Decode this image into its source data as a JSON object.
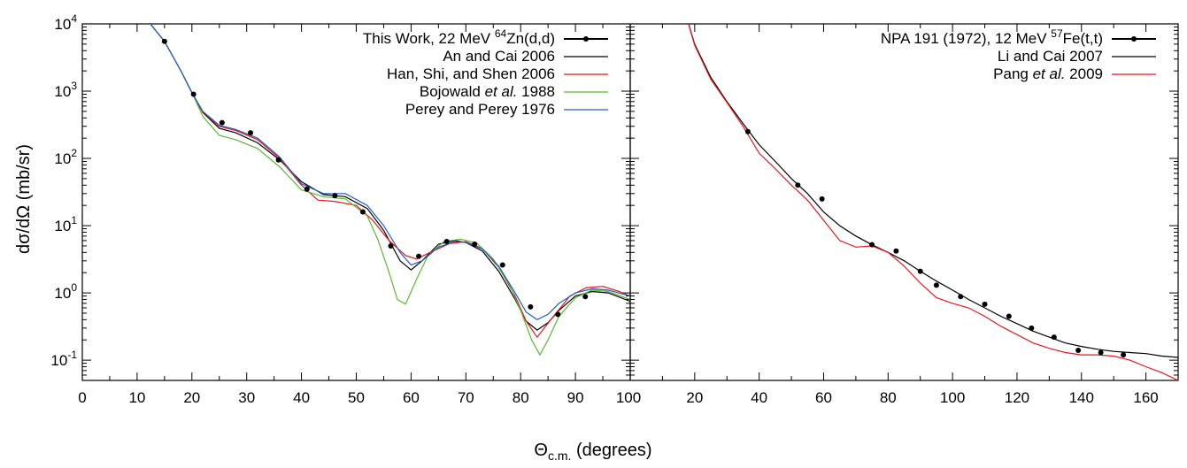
{
  "chart_data": [
    {
      "type": "scatter",
      "panel": "left",
      "xlabel": "Θc.m. (degrees)",
      "ylabel": "dσ/dΩ (mb/sr)",
      "xlim": [
        0,
        100
      ],
      "ylim": [
        0.05,
        10000
      ],
      "yscale": "log",
      "xticks": [
        0,
        10,
        20,
        30,
        40,
        50,
        60,
        70,
        80,
        90,
        100
      ],
      "yticks": [
        {
          "base": "10",
          "exp": "-1",
          "v": 0.1
        },
        {
          "base": "10",
          "exp": "0",
          "v": 1
        },
        {
          "base": "10",
          "exp": "1",
          "v": 10
        },
        {
          "base": "10",
          "exp": "2",
          "v": 100
        },
        {
          "base": "10",
          "exp": "3",
          "v": 1000
        },
        {
          "base": "10",
          "exp": "4",
          "v": 10000
        }
      ],
      "legend_position": "top-right",
      "series": [
        {
          "name": "This Work, 22 MeV 64Zn(d,d)",
          "legend": {
            "pre": "This Work, 22 MeV ",
            "sup": "64",
            "post": "Zn(d,d)"
          },
          "color": "#000000",
          "kind": "points",
          "x": [
            15,
            20.3,
            25.5,
            30.7,
            35.8,
            41,
            46.1,
            51.2,
            56.3,
            61.4,
            66.5,
            71.6,
            76.7,
            81.8,
            86.8,
            91.8
          ],
          "y": [
            5500,
            900,
            340,
            240,
            95,
            35,
            28,
            16,
            5,
            3.5,
            5.8,
            5.3,
            2.6,
            0.62,
            0.48,
            0.88
          ]
        },
        {
          "name": "An and Cai 2006",
          "legend": {
            "pre": "An and Cai 2006"
          },
          "color": "#000000",
          "kind": "line",
          "x": [
            12,
            15,
            18,
            20,
            22,
            25,
            28,
            32,
            36,
            40,
            44,
            48,
            52,
            55,
            58,
            60,
            62,
            65,
            68,
            70,
            73,
            76,
            79,
            81,
            83,
            85,
            87,
            90,
            93,
            96,
            100
          ],
          "y": [
            11000,
            5500,
            2000,
            950,
            480,
            280,
            240,
            170,
            95,
            45,
            29,
            27,
            18,
            8.5,
            3,
            2.2,
            3,
            5.3,
            6,
            5.6,
            4.2,
            2.1,
            0.8,
            0.38,
            0.28,
            0.36,
            0.55,
            0.9,
            1.05,
            1.0,
            0.75
          ]
        },
        {
          "name": "Han, Shi, and Shen 2006",
          "legend": {
            "pre": "Han, Shi, and Shen 2006"
          },
          "color": "#e8181c",
          "kind": "line",
          "x": [
            12,
            15,
            18,
            20,
            22,
            25,
            28,
            32,
            36,
            40,
            43,
            46,
            50,
            53,
            56,
            59,
            61,
            64,
            67,
            70,
            73,
            76,
            79,
            81,
            83,
            86,
            89,
            92,
            95,
            98,
            100
          ],
          "y": [
            11000,
            5500,
            2000,
            950,
            490,
            300,
            260,
            190,
            100,
            40,
            24,
            23,
            20,
            12,
            6,
            3.6,
            3.2,
            4.2,
            5.4,
            5.8,
            4.6,
            2.4,
            0.9,
            0.38,
            0.22,
            0.45,
            0.9,
            1.2,
            1.25,
            1.05,
            0.9
          ]
        },
        {
          "name": "Bojowald et al. 1988",
          "legend": {
            "pre": "Bojowald ",
            "ital": "et al.",
            "post": " 1988"
          },
          "color": "#5cb832",
          "kind": "line",
          "x": [
            12,
            15,
            18,
            20,
            22,
            25,
            28,
            32,
            36,
            40,
            44,
            48,
            52,
            54,
            56,
            57.5,
            59,
            61,
            63,
            66,
            69,
            72,
            75,
            78,
            80,
            82,
            83.5,
            85,
            87,
            90,
            93,
            96,
            100
          ],
          "y": [
            11000,
            5500,
            2000,
            950,
            420,
            220,
            190,
            140,
            75,
            34,
            27,
            25,
            14,
            6,
            2,
            0.8,
            0.68,
            1.6,
            3.5,
            5.8,
            6.3,
            5.5,
            3.2,
            1.3,
            0.55,
            0.2,
            0.12,
            0.2,
            0.45,
            0.85,
            1.1,
            1.05,
            0.8
          ]
        },
        {
          "name": "Perey and Perey 1976",
          "legend": {
            "pre": "Perey and Perey 1976"
          },
          "color": "#2060c0",
          "kind": "line",
          "x": [
            12,
            15,
            18,
            20,
            22,
            25,
            28,
            32,
            36,
            40,
            44,
            48,
            52,
            55,
            58,
            60,
            62,
            65,
            68,
            70,
            73,
            76,
            79,
            81,
            83,
            85,
            87,
            90,
            93,
            96,
            100
          ],
          "y": [
            11000,
            5500,
            2000,
            950,
            500,
            310,
            270,
            200,
            105,
            42,
            30,
            30,
            20,
            10,
            4,
            2.6,
            3,
            4.8,
            5.8,
            5.6,
            4.5,
            2.5,
            1.0,
            0.52,
            0.4,
            0.48,
            0.7,
            1.0,
            1.15,
            1.1,
            0.9
          ]
        }
      ]
    },
    {
      "type": "scatter",
      "panel": "right",
      "xlabel": "Θc.m. (degrees)",
      "ylabel": "",
      "xlim": [
        0,
        170
      ],
      "ylim": [
        0.05,
        10000
      ],
      "yscale": "log",
      "xticks": [
        0,
        20,
        40,
        60,
        80,
        100,
        120,
        140,
        160
      ],
      "legend_position": "top-right",
      "series": [
        {
          "name": "NPA 191 (1972), 12 MeV 57Fe(t,t)",
          "legend": {
            "pre": "NPA 191 (1972), 12 MeV ",
            "sup": "57",
            "post": "Fe(t,t)"
          },
          "color": "#000000",
          "kind": "points",
          "x": [
            36.5,
            52,
            59.5,
            75,
            82.5,
            90,
            95,
            102.5,
            110,
            117.5,
            124.5,
            131.5,
            139,
            146,
            153
          ],
          "y": [
            250,
            40,
            25,
            5.2,
            4.2,
            2.1,
            1.3,
            0.88,
            0.68,
            0.45,
            0.3,
            0.22,
            0.14,
            0.13,
            0.12
          ]
        },
        {
          "name": "Li and Cai 2007",
          "legend": {
            "pre": "Li and Cai 2007"
          },
          "color": "#000000",
          "kind": "line",
          "x": [
            17,
            20,
            25,
            30,
            35,
            40,
            45,
            50,
            55,
            60,
            65,
            70,
            75,
            80,
            85,
            90,
            95,
            100,
            105,
            110,
            115,
            120,
            125,
            130,
            135,
            140,
            145,
            150,
            155,
            160,
            165,
            170
          ],
          "y": [
            15000,
            5000,
            1600,
            700,
            330,
            160,
            90,
            50,
            30,
            16,
            10,
            7,
            5.2,
            4,
            3,
            2.1,
            1.5,
            1.1,
            0.8,
            0.6,
            0.45,
            0.35,
            0.27,
            0.22,
            0.18,
            0.16,
            0.145,
            0.135,
            0.13,
            0.125,
            0.115,
            0.11
          ]
        },
        {
          "name": "Pang et al. 2009",
          "legend": {
            "pre": "Pang ",
            "ital": "et al.",
            "post": " 2009"
          },
          "color": "#e8181c",
          "kind": "line",
          "x": [
            17,
            20,
            25,
            30,
            35,
            40,
            45,
            50,
            55,
            60,
            65,
            70,
            75,
            80,
            85,
            90,
            95,
            100,
            105,
            110,
            115,
            120,
            125,
            130,
            135,
            140,
            145,
            150,
            155,
            160,
            165,
            170
          ],
          "y": [
            15000,
            4800,
            1500,
            680,
            300,
            120,
            70,
            40,
            24,
            12,
            6,
            4.8,
            5.0,
            4.0,
            2.5,
            1.4,
            0.85,
            0.7,
            0.6,
            0.45,
            0.32,
            0.24,
            0.18,
            0.15,
            0.13,
            0.12,
            0.12,
            0.115,
            0.1,
            0.08,
            0.065,
            0.05
          ]
        }
      ]
    }
  ]
}
